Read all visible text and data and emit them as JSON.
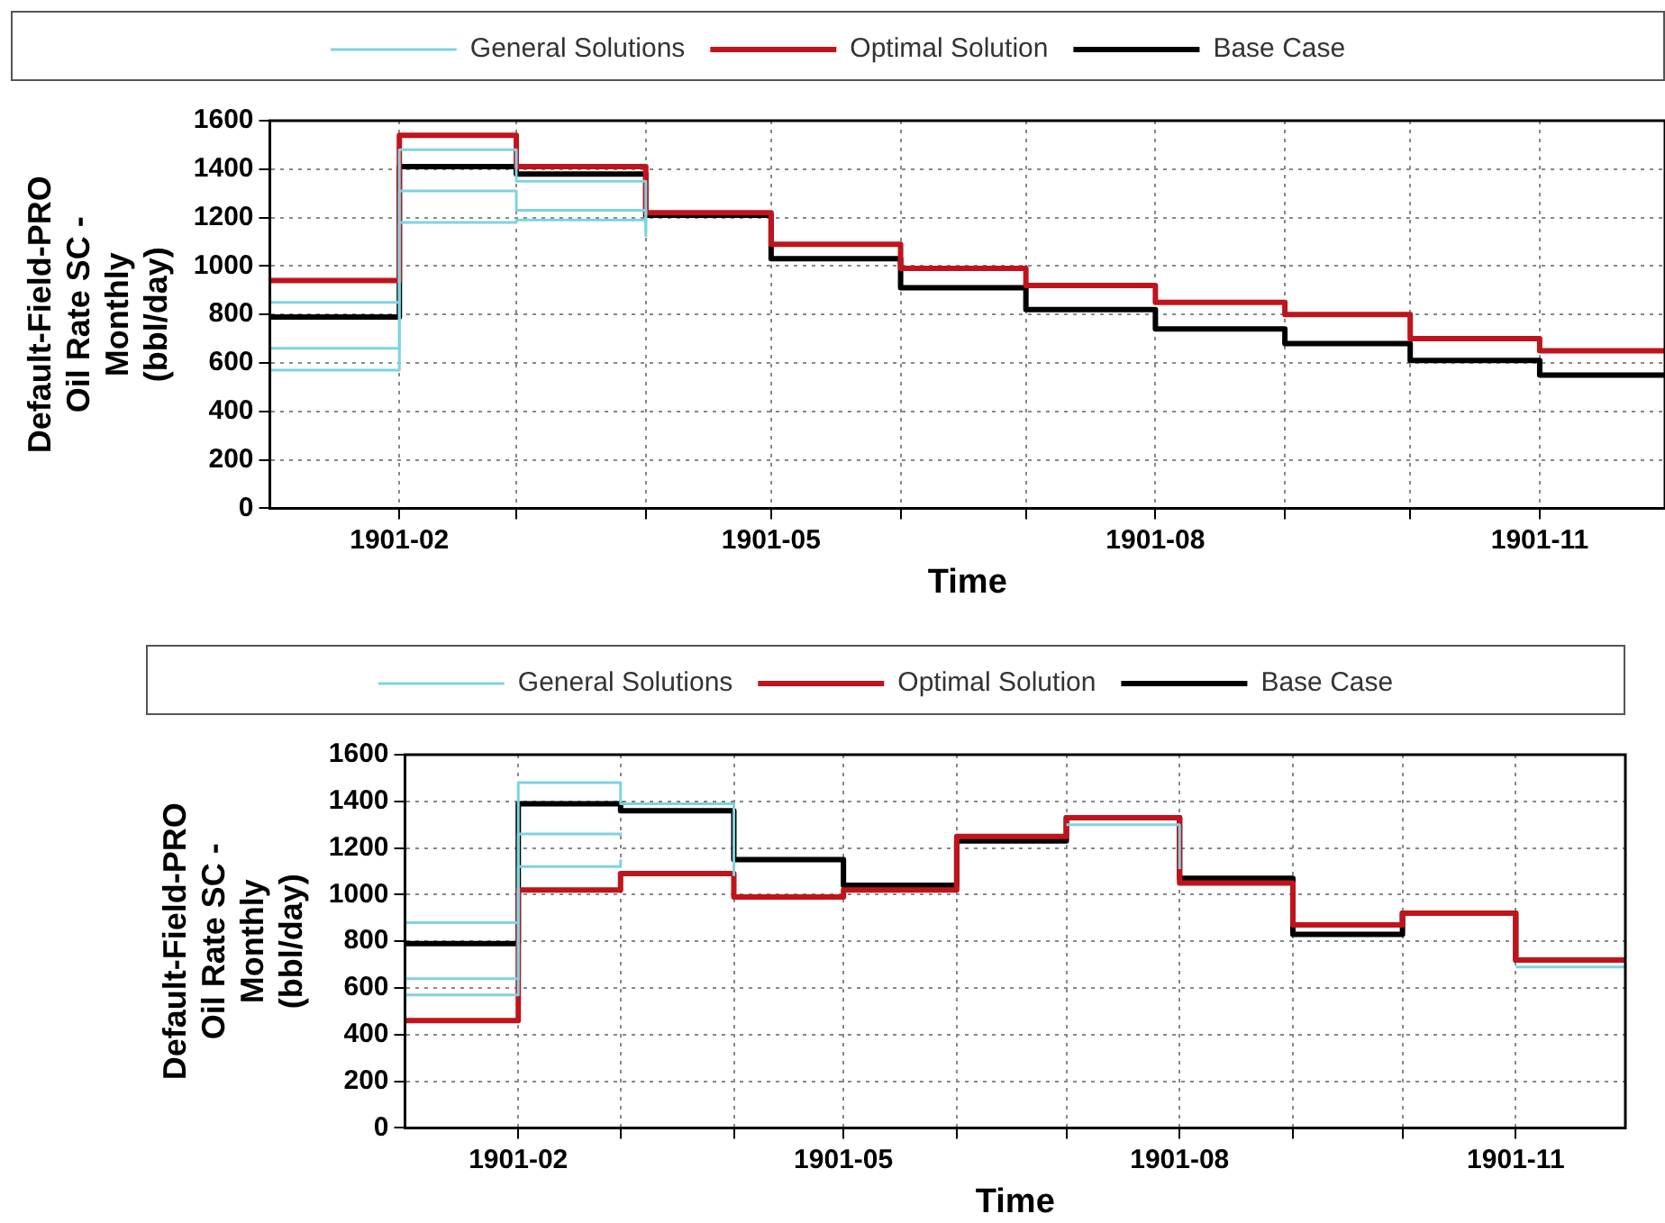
{
  "chart_data": [
    {
      "type": "step",
      "xlabel": "Time",
      "ylabel": "Default-Field-PRO Oil Rate SC - Monthly (bbl/day)",
      "x": [
        "1901-01",
        "1901-02",
        "1901-03",
        "1901-04",
        "1901-05",
        "1901-06",
        "1901-07",
        "1901-08",
        "1901-09",
        "1901-10",
        "1901-11",
        "1901-12"
      ],
      "xlim": [
        "1901-01",
        "1901-12"
      ],
      "xticks": [
        {
          "value": "1901-02",
          "label": "1901-02"
        },
        {
          "value": "1901-03",
          "label": null
        },
        {
          "value": "1901-04",
          "label": null
        },
        {
          "value": "1901-05",
          "label": "1901-05"
        },
        {
          "value": "1901-06",
          "label": null
        },
        {
          "value": "1901-07",
          "label": null
        },
        {
          "value": "1901-08",
          "label": "1901-08"
        },
        {
          "value": "1901-09",
          "label": null
        },
        {
          "value": "1901-10",
          "label": null
        },
        {
          "value": "1901-11",
          "label": "1901-11"
        }
      ],
      "ylim": [
        0,
        1600
      ],
      "yticks": [
        0,
        200,
        400,
        600,
        800,
        1000,
        1200,
        1400,
        1600
      ],
      "grid": true,
      "legend": "top",
      "line_style": "solid",
      "marker": "none",
      "series": [
        {
          "name": "General Solutions",
          "color": "#7fd3e0",
          "values": [
            850,
            1480,
            1350,
            1180,
            null,
            null,
            null,
            null,
            null,
            null,
            null,
            null
          ]
        },
        {
          "color": "#7fd3e0",
          "values": [
            660,
            1310,
            1230,
            1140,
            null,
            null,
            null,
            null,
            null,
            null,
            null,
            null
          ]
        },
        {
          "color": "#7fd3e0",
          "values": [
            570,
            1180,
            1190,
            1120,
            null,
            null,
            null,
            null,
            null,
            null,
            null,
            null
          ]
        },
        {
          "name": "Optimal Solution",
          "color": "#c0141c",
          "values": [
            940,
            1540,
            1410,
            1220,
            1090,
            990,
            920,
            850,
            800,
            700,
            650,
            650
          ]
        },
        {
          "name": "Base Case",
          "color": "#000000",
          "values": [
            790,
            1410,
            1380,
            1210,
            1030,
            910,
            820,
            740,
            680,
            610,
            550,
            550
          ]
        }
      ]
    },
    {
      "type": "step",
      "xlabel": "Time",
      "ylabel": "Default-Field-PRO Oil Rate SC - Monthly (bbl/day)",
      "x": [
        "1901-01",
        "1901-02",
        "1901-03",
        "1901-04",
        "1901-05",
        "1901-06",
        "1901-07",
        "1901-08",
        "1901-09",
        "1901-10",
        "1901-11",
        "1901-12"
      ],
      "xlim": [
        "1901-01",
        "1901-12"
      ],
      "xticks": [
        {
          "value": "1901-02",
          "label": "1901-02"
        },
        {
          "value": "1901-03",
          "label": null
        },
        {
          "value": "1901-04",
          "label": null
        },
        {
          "value": "1901-05",
          "label": "1901-05"
        },
        {
          "value": "1901-06",
          "label": null
        },
        {
          "value": "1901-07",
          "label": null
        },
        {
          "value": "1901-08",
          "label": "1901-08"
        },
        {
          "value": "1901-09",
          "label": null
        },
        {
          "value": "1901-10",
          "label": null
        },
        {
          "value": "1901-11",
          "label": "1901-11"
        }
      ],
      "ylim": [
        0,
        1600
      ],
      "yticks": [
        0,
        200,
        400,
        600,
        800,
        1000,
        1200,
        1400,
        1600
      ],
      "grid": true,
      "legend": "top",
      "line_style": "solid",
      "marker": "none",
      "series": [
        {
          "name": "General Solutions",
          "color": "#7fd3e0",
          "values": [
            880,
            1480,
            1390,
            1080,
            null,
            null,
            1300,
            1110,
            null,
            null,
            690,
            690
          ]
        },
        {
          "color": "#7fd3e0",
          "values": [
            640,
            1260,
            1250,
            null,
            null,
            null,
            null,
            null,
            null,
            null,
            null,
            null
          ]
        },
        {
          "color": "#7fd3e0",
          "values": [
            570,
            1120,
            1150,
            null,
            null,
            null,
            null,
            null,
            null,
            null,
            null,
            null
          ]
        },
        {
          "name": "Optimal Solution",
          "color": "#c0141c",
          "values": [
            460,
            1020,
            1090,
            990,
            1020,
            1250,
            1330,
            1050,
            870,
            920,
            720,
            720
          ]
        },
        {
          "name": "Base Case",
          "color": "#000000",
          "values": [
            790,
            1390,
            1360,
            1150,
            1040,
            1230,
            1330,
            1070,
            830,
            920,
            720,
            720
          ]
        }
      ]
    }
  ]
}
